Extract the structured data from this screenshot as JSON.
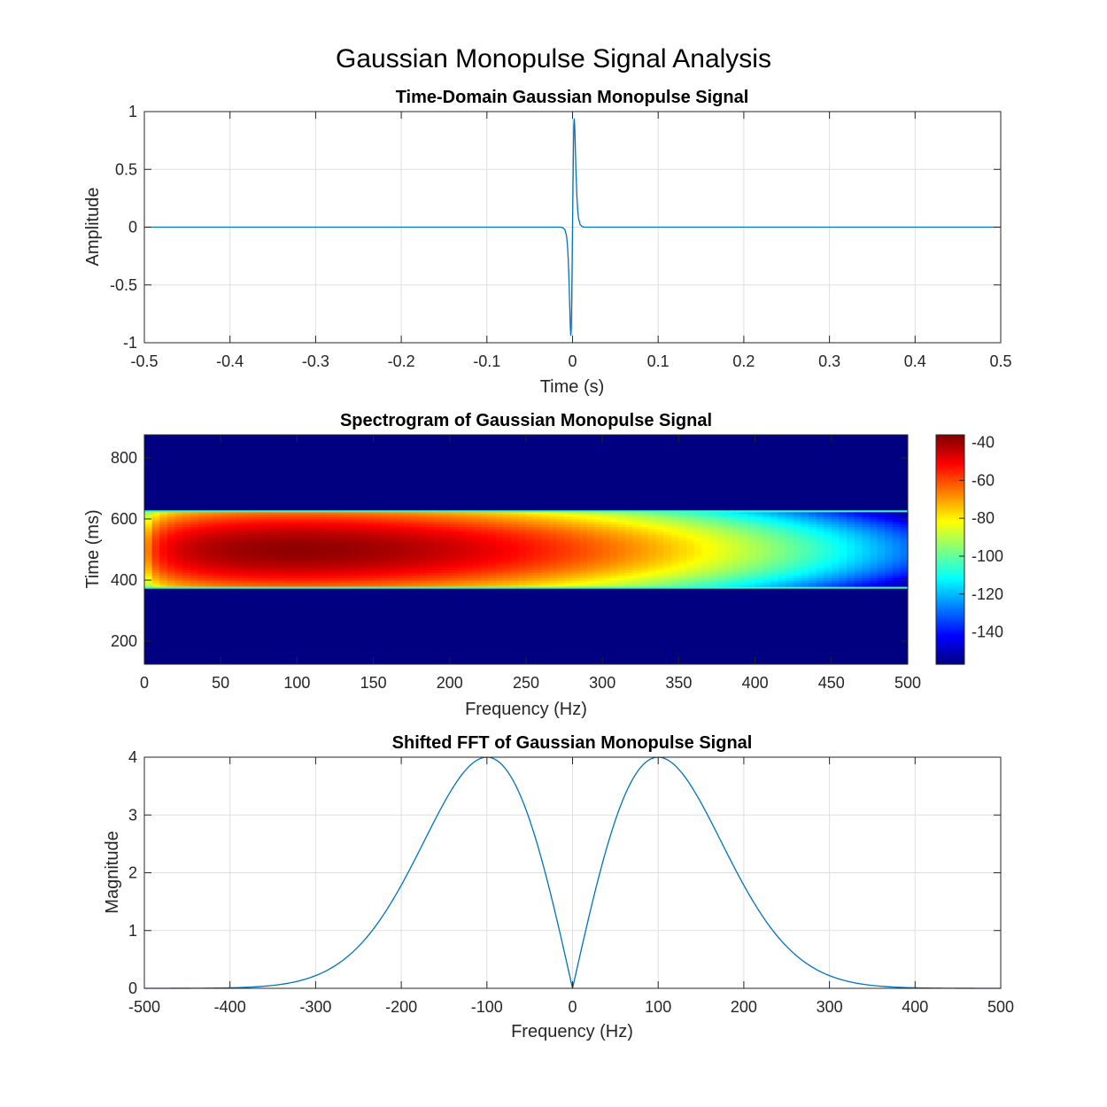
{
  "figure": {
    "title": "Gaussian Monopulse Signal Analysis"
  },
  "chart_data": [
    {
      "type": "line",
      "title": "Time-Domain Gaussian Monopulse Signal",
      "xlabel": "Time (s)",
      "ylabel": "Amplitude",
      "xlim": [
        -0.5,
        0.5
      ],
      "ylim": [
        -1,
        1
      ],
      "xticks": [
        "-0.5",
        "-0.4",
        "-0.3",
        "-0.2",
        "-0.1",
        "0",
        "0.1",
        "0.2",
        "0.3",
        "0.4",
        "0.5"
      ],
      "yticks": [
        "-1",
        "-0.5",
        "0",
        "0.5",
        "1"
      ],
      "grid": true,
      "series": [
        {
          "x": [
            -0.5,
            -0.015,
            -0.012,
            -0.009,
            -0.007,
            -0.006,
            -0.005,
            -0.004,
            -0.0035,
            -0.003,
            -0.0025,
            -0.002,
            -0.0015,
            -0.001,
            -0.0005,
            0,
            0.0005,
            0.001,
            0.0015,
            0.002,
            0.0025,
            0.003,
            0.0035,
            0.004,
            0.005,
            0.006,
            0.007,
            0.009,
            0.012,
            0.015,
            0.5
          ],
          "y": [
            0,
            0,
            -0.002,
            -0.02,
            -0.075,
            -0.15,
            -0.28,
            -0.49,
            -0.62,
            -0.76,
            -0.88,
            -0.94,
            -0.88,
            -0.65,
            -0.34,
            0,
            0.34,
            0.65,
            0.88,
            0.94,
            0.88,
            0.76,
            0.62,
            0.49,
            0.28,
            0.15,
            0.075,
            0.02,
            0.002,
            0,
            0
          ]
        }
      ]
    },
    {
      "type": "heatmap",
      "title": "Spectrogram of Gaussian Monopulse Signal",
      "xlabel": "Frequency (Hz)",
      "ylabel": "Time (ms)",
      "xlim": [
        0,
        500
      ],
      "ylim": [
        125,
        875
      ],
      "xticks": [
        "0",
        "50",
        "100",
        "150",
        "200",
        "250",
        "300",
        "350",
        "400",
        "450",
        "500"
      ],
      "yticks": [
        "200",
        "400",
        "600",
        "800"
      ],
      "colormap": "jet",
      "clim": [
        -157,
        -36
      ],
      "colorbar_ticks": [
        "-40",
        "-60",
        "-80",
        "-100",
        "-120",
        "-140"
      ],
      "active_band_ms": [
        375,
        625
      ],
      "band_edge_level_db": -105,
      "background_level_db": -157,
      "peak_frequency_hz": 100,
      "peak_level_db": -38
    },
    {
      "type": "line",
      "title": "Shifted FFT of Gaussian Monopulse Signal",
      "xlabel": "Frequency (Hz)",
      "ylabel": "Magnitude",
      "xlim": [
        -500,
        500
      ],
      "ylim": [
        0,
        4
      ],
      "xticks": [
        "-500",
        "-400",
        "-300",
        "-200",
        "-100",
        "0",
        "100",
        "200",
        "300",
        "400",
        "500"
      ],
      "yticks": [
        "0",
        "1",
        "2",
        "3",
        "4"
      ],
      "grid": true,
      "series": [
        {
          "x": [
            -500,
            -450,
            -400,
            -375,
            -350,
            -325,
            -300,
            -275,
            -250,
            -225,
            -200,
            -175,
            -150,
            -125,
            -100,
            -75,
            -50,
            -25,
            0,
            25,
            50,
            75,
            100,
            125,
            150,
            175,
            200,
            225,
            250,
            275,
            300,
            325,
            350,
            375,
            400,
            450,
            500
          ],
          "y": [
            0.0,
            0.002,
            0.015,
            0.04,
            0.09,
            0.19,
            0.35,
            0.62,
            1.01,
            1.53,
            2.16,
            2.83,
            3.44,
            3.86,
            4.0,
            3.81,
            3.03,
            1.73,
            0.0,
            1.73,
            3.03,
            3.81,
            4.0,
            3.86,
            3.44,
            2.83,
            2.16,
            1.53,
            1.01,
            0.62,
            0.35,
            0.19,
            0.09,
            0.04,
            0.015,
            0.002,
            0.0
          ]
        }
      ]
    }
  ]
}
